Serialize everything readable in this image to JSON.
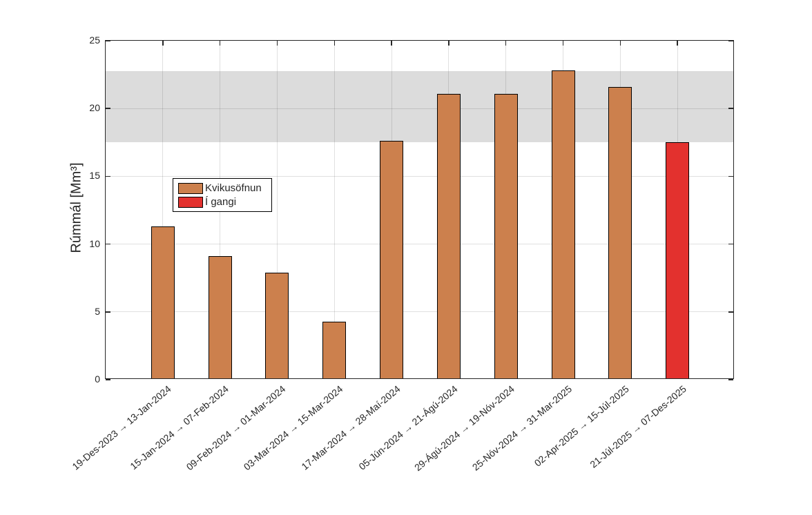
{
  "chart_data": {
    "type": "bar",
    "title": "",
    "xlabel": "",
    "ylabel": "Rúmmál [Mm³]",
    "ylim": [
      0,
      25
    ],
    "yticks": [
      0,
      5,
      10,
      15,
      20,
      25
    ],
    "grid": true,
    "x_tick_rotation_deg": 40,
    "categories": [
      "19-Des-2023 → 13-Jan-2024",
      "15-Jan-2024 → 07-Feb-2024",
      "09-Feb-2024 → 01-Mar-2024",
      "03-Mar-2024 → 15-Mar-2024",
      "17-Mar-2024 → 28-Maí-2024",
      "05-Jún-2024 → 21-Ágú-2024",
      "29-Ágú-2024 → 19-Nóv-2024",
      "25-Nóv-2024 → 31-Mar-2025",
      "02-Apr-2025 → 15-Júl-2025",
      "21-Júl-2025 → 07-Des-2025"
    ],
    "values": [
      11.2,
      9.0,
      7.8,
      4.2,
      17.5,
      21.0,
      21.0,
      22.7,
      21.5,
      17.4
    ],
    "bar_series": [
      "Kvikusöfnun",
      "Kvikusöfnun",
      "Kvikusöfnun",
      "Kvikusöfnun",
      "Kvikusöfnun",
      "Kvikusöfnun",
      "Kvikusöfnun",
      "Kvikusöfnun",
      "Kvikusöfnun",
      "Í gangi"
    ],
    "series": [
      {
        "name": "Kvikusöfnun",
        "color": "#CC804D"
      },
      {
        "name": "Í gangi",
        "color": "#E3312E"
      }
    ],
    "band": {
      "from": 17.5,
      "to": 22.75,
      "color": "#DCDCDC"
    },
    "legend_position": "inside-left-middle"
  },
  "legend": {
    "entries": [
      {
        "label": "Kvikusöfnun",
        "color": "#CC804D"
      },
      {
        "label": "Í gangi",
        "color": "#E3312E"
      }
    ]
  },
  "colors": {
    "axis": "#262626",
    "bar_edge": "#000000",
    "background": "#FFFFFF"
  }
}
